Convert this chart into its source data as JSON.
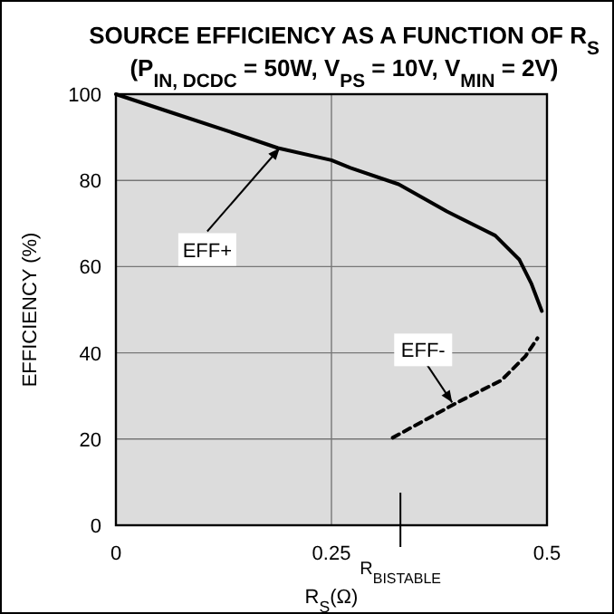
{
  "chart_data": {
    "type": "line",
    "title": "SOURCE EFFICIENCY AS A FUNCTION OF R$_{S}$",
    "subtitle": "(P$_{IN, DCDC}$ = 50W, V$_{PS}$ = 10V, V$_{MIN}$ = 2V)",
    "xlabel": "R$_{S}$(Ω)",
    "ylabel": "EFFICIENCY (%)",
    "series": [
      {
        "color": "#000000",
        "line_style": "solid",
        "x": [
          0,
          0.062,
          0.132,
          0.188,
          0.25,
          0.272,
          0.328,
          0.384,
          0.44,
          0.468,
          0.482,
          0.494
        ],
        "values": [
          100,
          95.9,
          91.3,
          87.5,
          84.7,
          82.9,
          79.1,
          72.8,
          67.2,
          61.6,
          56,
          49.7
        ]
      },
      {
        "color": "#000000",
        "line_style": "dashed",
        "x": [
          0.321,
          0.398,
          0.447,
          0.475,
          0.489
        ],
        "values": [
          20.3,
          28.7,
          33.6,
          39.2,
          43.4
        ]
      }
    ],
    "annotations": [
      {
        "text": "EFF+",
        "x": 0.19,
        "y": 87.5
      },
      {
        "text": "EFF-",
        "x": 0.39,
        "y": 28.5
      }
    ],
    "ref_lines": [
      {
        "axis": "x",
        "value": 0.33,
        "label": "R$_{BISTABLE}$"
      }
    ],
    "xlim": [
      0,
      0.5
    ],
    "xticks": [
      0,
      0.25,
      0.5
    ],
    "ylim": [
      0,
      100
    ],
    "yticks": [
      0,
      20,
      40,
      60,
      80,
      100
    ],
    "grid": true,
    "marker": "none"
  }
}
